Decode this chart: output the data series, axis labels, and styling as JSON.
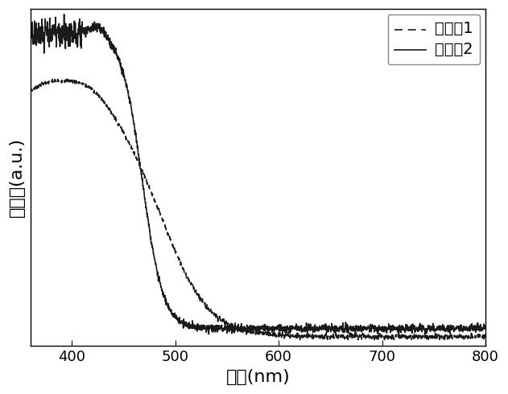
{
  "xlabel": "波长(nm)",
  "ylabel": "吸光度(a.u.)",
  "legend1": "实施例1",
  "legend2": "实施例2",
  "xlim": [
    360,
    800
  ],
  "ylim": [
    0,
    1.05
  ],
  "xticks": [
    400,
    500,
    600,
    700,
    800
  ],
  "line1_color": "#1a1a1a",
  "line2_color": "#1a1a1a",
  "bg_color": "#ffffff",
  "fontsize_label": 16,
  "fontsize_legend": 14,
  "fontsize_tick": 13
}
